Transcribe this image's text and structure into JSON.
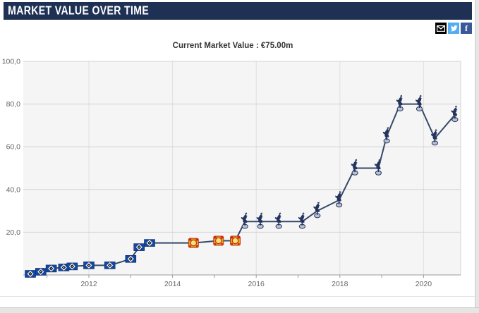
{
  "header": {
    "title": "MARKET VALUE OVER TIME",
    "bg_color": "#1e3155"
  },
  "share": {
    "buttons": [
      {
        "name": "email",
        "icon": "envelope-icon",
        "color": "#000000"
      },
      {
        "name": "twitter",
        "icon": "twitter-bird-icon",
        "color": "#55acee"
      },
      {
        "name": "facebook",
        "icon": "facebook-f-icon",
        "color": "#3b5998",
        "glyph": "f"
      }
    ]
  },
  "subtitle": {
    "text": "Current Market Value : €75.00m"
  },
  "chart_data": {
    "type": "line",
    "title": "Current Market Value : €75.00m",
    "unit": "€m (millions of euros)",
    "xlabel": "",
    "ylabel": "",
    "line_color": "#35496a",
    "plot_bg": "#f5f5f5",
    "grid": true,
    "ylim": [
      0,
      100
    ],
    "xlim": [
      2010.4,
      2020.95
    ],
    "y_ticks": [
      {
        "value": 100,
        "label": "100,0"
      },
      {
        "value": 80,
        "label": "80,0"
      },
      {
        "value": 60,
        "label": "60,0"
      },
      {
        "value": 40,
        "label": "40,0"
      },
      {
        "value": 20,
        "label": "20,0"
      }
    ],
    "x_ticks": [
      {
        "year": 2012,
        "label": "2012"
      },
      {
        "year": 2014,
        "label": "2014"
      },
      {
        "year": 2016,
        "label": "2016"
      },
      {
        "year": 2018,
        "label": "2018"
      },
      {
        "year": 2020,
        "label": "2020"
      }
    ],
    "x_minor_tick_years": [
      2011,
      2012,
      2013,
      2014,
      2015,
      2016,
      2017,
      2018,
      2019,
      2020
    ],
    "clubs": {
      "hsv": {
        "name": "Hamburger SV",
        "marker": "hsv-crest-icon",
        "colors": [
          "#15479e",
          "#ffffff",
          "#111111"
        ]
      },
      "b04": {
        "name": "Bayer 04 Leverkusen",
        "marker": "leverkusen-crest-icon",
        "colors": [
          "#d9af14",
          "#cc2b1d",
          "#f3e27a"
        ]
      },
      "spurs": {
        "name": "Tottenham Hotspur",
        "marker": "tottenham-cockerel-icon",
        "colors": [
          "#24345f",
          "#b9c0cf"
        ]
      }
    },
    "series": [
      {
        "name": "Market value",
        "points": [
          {
            "x": 2010.6,
            "value": 0.5,
            "club": "hsv"
          },
          {
            "x": 2010.85,
            "value": 1.5,
            "club": "hsv"
          },
          {
            "x": 2011.1,
            "value": 3,
            "club": "hsv"
          },
          {
            "x": 2011.4,
            "value": 3.5,
            "club": "hsv"
          },
          {
            "x": 2011.6,
            "value": 4,
            "club": "hsv"
          },
          {
            "x": 2012.0,
            "value": 4.5,
            "club": "hsv"
          },
          {
            "x": 2012.5,
            "value": 4.5,
            "club": "hsv"
          },
          {
            "x": 2013.0,
            "value": 7.5,
            "club": "hsv"
          },
          {
            "x": 2013.2,
            "value": 13,
            "club": "hsv"
          },
          {
            "x": 2013.45,
            "value": 15,
            "club": "hsv"
          },
          {
            "x": 2014.5,
            "value": 15,
            "club": "b04"
          },
          {
            "x": 2015.1,
            "value": 16,
            "club": "b04"
          },
          {
            "x": 2015.5,
            "value": 16,
            "club": "b04"
          },
          {
            "x": 2015.73,
            "value": 25,
            "club": "spurs"
          },
          {
            "x": 2016.1,
            "value": 25,
            "club": "spurs"
          },
          {
            "x": 2016.54,
            "value": 25,
            "club": "spurs"
          },
          {
            "x": 2017.1,
            "value": 25,
            "club": "spurs"
          },
          {
            "x": 2017.46,
            "value": 30,
            "club": "spurs"
          },
          {
            "x": 2017.98,
            "value": 35,
            "club": "spurs"
          },
          {
            "x": 2018.36,
            "value": 50,
            "club": "spurs"
          },
          {
            "x": 2018.92,
            "value": 50,
            "club": "spurs"
          },
          {
            "x": 2019.12,
            "value": 65,
            "club": "spurs"
          },
          {
            "x": 2019.44,
            "value": 80,
            "club": "spurs"
          },
          {
            "x": 2019.9,
            "value": 80,
            "club": "spurs"
          },
          {
            "x": 2020.27,
            "value": 64,
            "club": "spurs"
          },
          {
            "x": 2020.75,
            "value": 75,
            "club": "spurs"
          }
        ]
      }
    ]
  }
}
